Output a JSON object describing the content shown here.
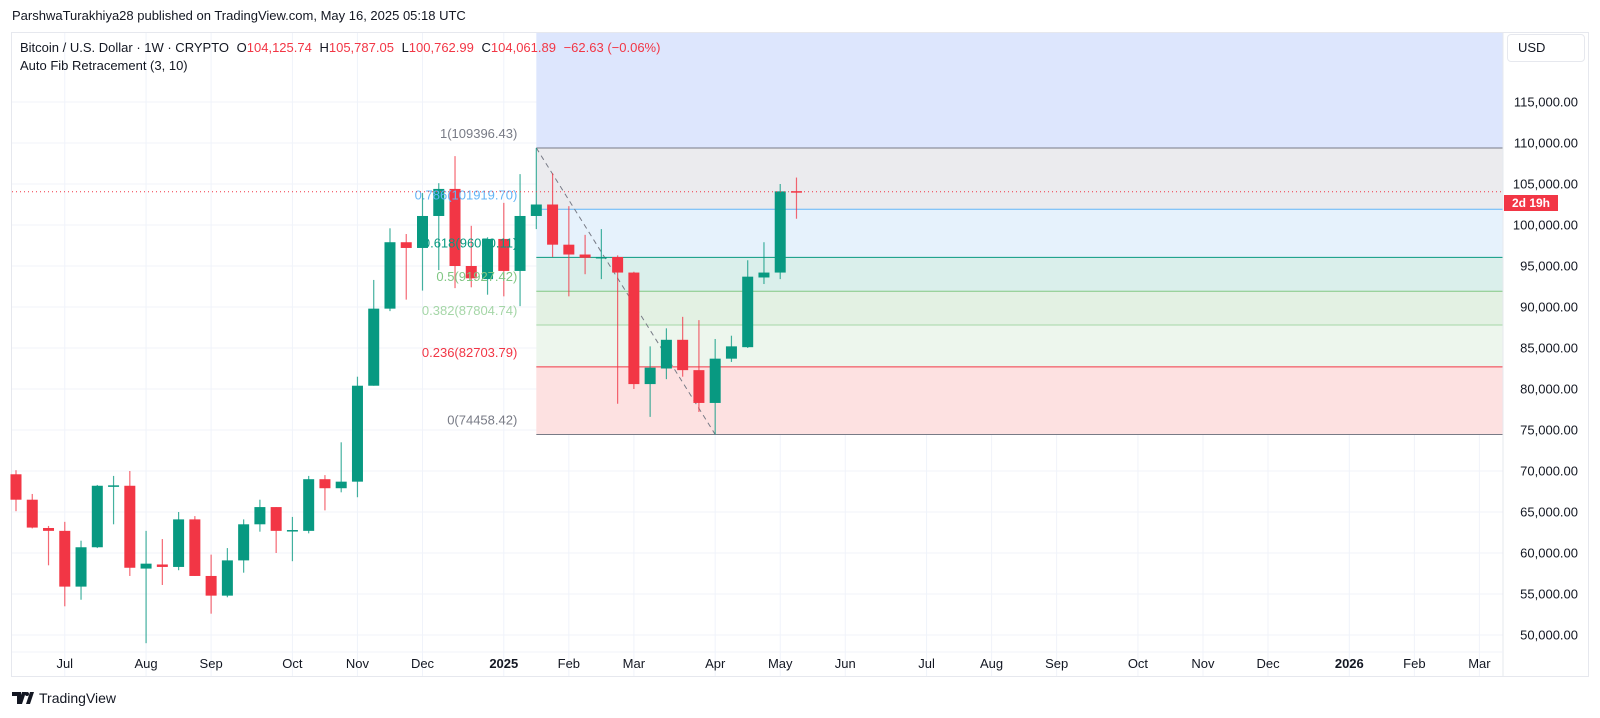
{
  "header": {
    "published": "ParshwaTurakhiya28 published on TradingView.com, May 16, 2025 05:18 UTC"
  },
  "legend": {
    "symbol": "Bitcoin / U.S. Dollar · 1W · CRYPTO",
    "o_label": "O",
    "o": "104,125.74",
    "h_label": "H",
    "h": "105,787.05",
    "l_label": "L",
    "l": "100,762.99",
    "c_label": "C",
    "c": "104,061.89",
    "change": "−62.63 (−0.06%)",
    "indicator": "Auto Fib Retracement (3, 10)"
  },
  "price_axis": {
    "currency": "USD",
    "countdown": "2d 19h"
  },
  "footer": {
    "brand": "TradingView"
  },
  "colors": {
    "up": "#089981",
    "down": "#f23645",
    "grid": "#f0f3fa",
    "text": "#131722"
  },
  "chart_data": {
    "type": "candlestick",
    "symbol": "BTCUSD",
    "interval": "1W",
    "ylim": [
      47000,
      121000
    ],
    "grid": true,
    "y_ticks": [
      115000,
      110000,
      105000,
      100000,
      95000,
      90000,
      85000,
      80000,
      75000,
      70000,
      65000,
      60000,
      55000,
      50000
    ],
    "y_tick_labels": [
      "115,000.00",
      "110,000.00",
      "105,000.00",
      "100,000.00",
      "95,000.00",
      "90,000.00",
      "85,000.00",
      "80,000.00",
      "75,000.00",
      "70,000.00",
      "65,000.00",
      "60,000.00",
      "55,000.00",
      "50,000.00"
    ],
    "x_ticks": [
      {
        "label": "Jul",
        "date": "2024-07-01"
      },
      {
        "label": "Aug",
        "date": "2024-08-05"
      },
      {
        "label": "Sep",
        "date": "2024-09-02"
      },
      {
        "label": "Oct",
        "date": "2024-10-07"
      },
      {
        "label": "Nov",
        "date": "2024-11-04"
      },
      {
        "label": "Dec",
        "date": "2024-12-02"
      },
      {
        "label": "2025",
        "date": "2025-01-06",
        "bold": true
      },
      {
        "label": "Feb",
        "date": "2025-02-03"
      },
      {
        "label": "Mar",
        "date": "2025-03-03"
      },
      {
        "label": "Apr",
        "date": "2025-04-07"
      },
      {
        "label": "May",
        "date": "2025-05-05"
      },
      {
        "label": "Jun",
        "date": "2025-06-02"
      },
      {
        "label": "Jul",
        "date": "2025-07-07"
      },
      {
        "label": "Aug",
        "date": "2025-08-04"
      },
      {
        "label": "Sep",
        "date": "2025-09-01"
      },
      {
        "label": "Oct",
        "date": "2025-10-06"
      },
      {
        "label": "Nov",
        "date": "2025-11-03"
      },
      {
        "label": "Dec",
        "date": "2025-12-01"
      },
      {
        "label": "2026",
        "date": "2026-01-05",
        "bold": true
      },
      {
        "label": "Feb",
        "date": "2026-02-02"
      },
      {
        "label": "Mar",
        "date": "2026-03-02"
      }
    ],
    "candles": [
      {
        "d": "2024-06-10",
        "o": 69600,
        "h": 70100,
        "l": 65100,
        "c": 66500
      },
      {
        "d": "2024-06-17",
        "o": 66500,
        "h": 67200,
        "l": 63000,
        "c": 63100
      },
      {
        "d": "2024-06-24",
        "o": 63050,
        "h": 63300,
        "l": 58500,
        "c": 62700
      },
      {
        "d": "2024-07-01",
        "o": 62700,
        "h": 63800,
        "l": 53500,
        "c": 55900
      },
      {
        "d": "2024-07-08",
        "o": 55900,
        "h": 61500,
        "l": 54300,
        "c": 60700
      },
      {
        "d": "2024-07-15",
        "o": 60700,
        "h": 68300,
        "l": 60600,
        "c": 68200
      },
      {
        "d": "2024-07-22",
        "o": 68200,
        "h": 69400,
        "l": 63500,
        "c": 68250
      },
      {
        "d": "2024-07-29",
        "o": 68200,
        "h": 70000,
        "l": 57200,
        "c": 58200
      },
      {
        "d": "2024-08-05",
        "o": 58100,
        "h": 62700,
        "l": 49000,
        "c": 58700
      },
      {
        "d": "2024-08-12",
        "o": 58600,
        "h": 61700,
        "l": 56100,
        "c": 58300
      },
      {
        "d": "2024-08-19",
        "o": 58300,
        "h": 65000,
        "l": 57900,
        "c": 64100
      },
      {
        "d": "2024-08-26",
        "o": 64100,
        "h": 64500,
        "l": 57200,
        "c": 57200
      },
      {
        "d": "2024-09-02",
        "o": 57200,
        "h": 59800,
        "l": 52600,
        "c": 54800
      },
      {
        "d": "2024-09-09",
        "o": 54800,
        "h": 60600,
        "l": 54600,
        "c": 59100
      },
      {
        "d": "2024-09-16",
        "o": 59100,
        "h": 64100,
        "l": 57600,
        "c": 63500
      },
      {
        "d": "2024-09-23",
        "o": 63500,
        "h": 66500,
        "l": 62600,
        "c": 65600
      },
      {
        "d": "2024-09-30",
        "o": 65600,
        "h": 65600,
        "l": 60000,
        "c": 62700
      },
      {
        "d": "2024-10-07",
        "o": 62700,
        "h": 64400,
        "l": 59000,
        "c": 62800
      },
      {
        "d": "2024-10-14",
        "o": 62700,
        "h": 69400,
        "l": 62400,
        "c": 69000
      },
      {
        "d": "2024-10-21",
        "o": 69000,
        "h": 69500,
        "l": 65200,
        "c": 67900
      },
      {
        "d": "2024-10-28",
        "o": 67900,
        "h": 73500,
        "l": 67400,
        "c": 68700
      },
      {
        "d": "2024-11-04",
        "o": 68700,
        "h": 81500,
        "l": 66800,
        "c": 80400
      },
      {
        "d": "2024-11-11",
        "o": 80400,
        "h": 93300,
        "l": 80400,
        "c": 89800
      },
      {
        "d": "2024-11-18",
        "o": 89800,
        "h": 99600,
        "l": 89500,
        "c": 97900
      },
      {
        "d": "2024-11-25",
        "o": 97900,
        "h": 98900,
        "l": 90900,
        "c": 97200
      },
      {
        "d": "2024-12-02",
        "o": 97200,
        "h": 103900,
        "l": 92000,
        "c": 101100
      },
      {
        "d": "2024-12-09",
        "o": 101100,
        "h": 105100,
        "l": 94500,
        "c": 104400
      },
      {
        "d": "2024-12-16",
        "o": 104400,
        "h": 108400,
        "l": 92300,
        "c": 95000
      },
      {
        "d": "2024-12-23",
        "o": 95000,
        "h": 99900,
        "l": 92400,
        "c": 93500
      },
      {
        "d": "2024-12-30",
        "o": 93400,
        "h": 98500,
        "l": 91500,
        "c": 98300
      },
      {
        "d": "2025-01-06",
        "o": 98300,
        "h": 102700,
        "l": 91300,
        "c": 94400
      },
      {
        "d": "2025-01-13",
        "o": 94400,
        "h": 106200,
        "l": 90100,
        "c": 101100
      },
      {
        "d": "2025-01-20",
        "o": 101100,
        "h": 109396,
        "l": 99500,
        "c": 102500
      },
      {
        "d": "2025-01-27",
        "o": 102500,
        "h": 106300,
        "l": 96100,
        "c": 97600
      },
      {
        "d": "2025-02-03",
        "o": 97600,
        "h": 102300,
        "l": 91300,
        "c": 96400
      },
      {
        "d": "2025-02-10",
        "o": 96400,
        "h": 98800,
        "l": 94000,
        "c": 96000
      },
      {
        "d": "2025-02-17",
        "o": 96000,
        "h": 99500,
        "l": 93400,
        "c": 96100
      },
      {
        "d": "2025-02-24",
        "o": 96100,
        "h": 96300,
        "l": 78200,
        "c": 94200
      },
      {
        "d": "2025-03-03",
        "o": 94200,
        "h": 94300,
        "l": 80000,
        "c": 80600
      },
      {
        "d": "2025-03-10",
        "o": 80600,
        "h": 85200,
        "l": 76600,
        "c": 82600
      },
      {
        "d": "2025-03-17",
        "o": 82500,
        "h": 87400,
        "l": 81200,
        "c": 86000
      },
      {
        "d": "2025-03-24",
        "o": 86000,
        "h": 88800,
        "l": 81500,
        "c": 82300
      },
      {
        "d": "2025-03-31",
        "o": 82300,
        "h": 88400,
        "l": 77200,
        "c": 78300
      },
      {
        "d": "2025-04-07",
        "o": 78300,
        "h": 86100,
        "l": 74458,
        "c": 83700
      },
      {
        "d": "2025-04-14",
        "o": 83700,
        "h": 86500,
        "l": 83300,
        "c": 85200
      },
      {
        "d": "2025-04-21",
        "o": 85100,
        "h": 95700,
        "l": 85000,
        "c": 93700
      },
      {
        "d": "2025-04-28",
        "o": 93600,
        "h": 97900,
        "l": 92800,
        "c": 94200
      },
      {
        "d": "2025-05-05",
        "o": 94200,
        "h": 105000,
        "l": 93400,
        "c": 104100
      },
      {
        "d": "2025-05-12",
        "o": 104125.74,
        "h": 105787.05,
        "l": 100762.99,
        "c": 104061.89
      }
    ],
    "fib": {
      "anchor_start": "2025-01-20",
      "anchor_end": "2025-04-07",
      "levels": [
        {
          "ratio": 1,
          "price": 109396.43,
          "label": "1(109396.43)",
          "color": "#787b86",
          "fill": "#ebebee"
        },
        {
          "ratio": 0.786,
          "price": 101919.7,
          "label": "0.786(101919.70)",
          "color": "#64b5f6",
          "fill": "#e6f2fc"
        },
        {
          "ratio": 0.618,
          "price": 96050.11,
          "label": "0.618(96050.11)",
          "color": "#089981",
          "fill": "#daefeb"
        },
        {
          "ratio": 0.5,
          "price": 91927.42,
          "label": "0.5(91927.42)",
          "color": "#81c784",
          "fill": "#e3f1e3"
        },
        {
          "ratio": 0.382,
          "price": 87804.74,
          "label": "0.382(87804.74)",
          "color": "#a5d6a7",
          "fill": "#edf6ed"
        },
        {
          "ratio": 0.236,
          "price": 82703.79,
          "label": "0.236(82703.79)",
          "color": "#f23645",
          "fill": "#fde1e1"
        },
        {
          "ratio": 0,
          "price": 74458.42,
          "label": "0(74458.42)",
          "color": "#787b86",
          "fill": ""
        }
      ],
      "above_fill": "#dde6fd"
    },
    "last_price": 104061.89
  }
}
